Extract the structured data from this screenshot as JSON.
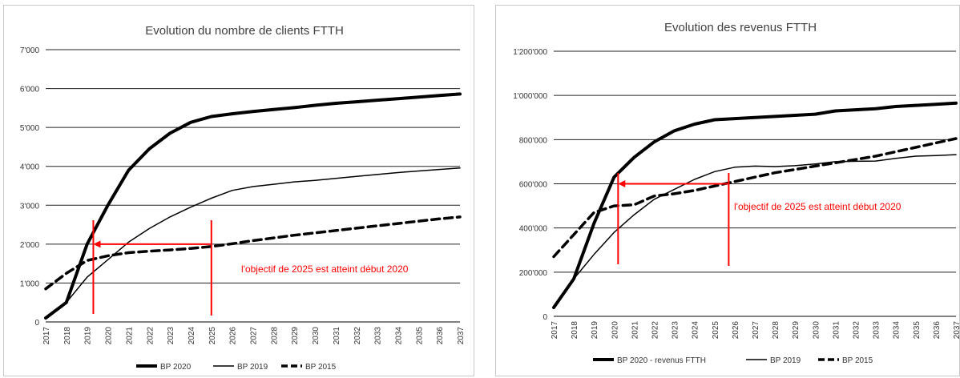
{
  "chart_data": [
    {
      "type": "line",
      "title": "Evolution du nombre de clients FTTH",
      "xlabel": "",
      "ylabel": "",
      "x": [
        "2017",
        "2018",
        "2019",
        "2020",
        "2021",
        "2022",
        "2023",
        "2024",
        "2025",
        "2026",
        "2027",
        "2028",
        "2029",
        "2030",
        "2031",
        "2032",
        "2033",
        "2034",
        "2035",
        "2036",
        "2037"
      ],
      "ylim": [
        0,
        7000
      ],
      "yticks": [
        "0",
        "1'000",
        "2'000",
        "3'000",
        "4'000",
        "5'000",
        "6'000",
        "7'000"
      ],
      "grid": true,
      "legend_position": "bottom",
      "series": [
        {
          "name": "BP 2020",
          "style": "thick",
          "values": [
            100,
            500,
            2000,
            3000,
            3900,
            4450,
            4850,
            5130,
            5280,
            5350,
            5410,
            5460,
            5510,
            5570,
            5620,
            5660,
            5700,
            5740,
            5780,
            5820,
            5860
          ]
        },
        {
          "name": "BP 2019",
          "style": "thin",
          "values": [
            100,
            500,
            1150,
            1600,
            2050,
            2400,
            2700,
            2950,
            3180,
            3380,
            3480,
            3540,
            3600,
            3640,
            3690,
            3740,
            3790,
            3840,
            3880,
            3920,
            3960
          ]
        },
        {
          "name": "BP 2015",
          "style": "dashed",
          "values": [
            850,
            1250,
            1580,
            1700,
            1780,
            1820,
            1850,
            1890,
            1940,
            2010,
            2090,
            2160,
            2230,
            2290,
            2350,
            2410,
            2470,
            2530,
            2590,
            2650,
            2700
          ]
        }
      ],
      "annotation": {
        "text": "l'objectif de 2025 est atteint début 2020",
        "color": "#ff0000",
        "arrow_y_value": 2000,
        "arrow_from_year": 2025,
        "arrow_to_year": 2019.3
      }
    },
    {
      "type": "line",
      "title": "Evolution des revenus FTTH",
      "xlabel": "",
      "ylabel": "",
      "x": [
        "2017",
        "2018",
        "2019",
        "2020",
        "2021",
        "2022",
        "2023",
        "2024",
        "2025",
        "2026",
        "2027",
        "2028",
        "2029",
        "2030",
        "2031",
        "2032",
        "2033",
        "2034",
        "2035",
        "2036",
        "2037"
      ],
      "ylim": [
        0,
        1200000
      ],
      "yticks": [
        "0",
        "200'000",
        "400'000",
        "600'000",
        "800'000",
        "1'000'000",
        "1'200'000"
      ],
      "grid": true,
      "legend_position": "bottom",
      "series": [
        {
          "name": "BP 2020 - revenus FTTH",
          "style": "thick",
          "values": [
            40000,
            170000,
            420000,
            630000,
            720000,
            790000,
            840000,
            870000,
            890000,
            895000,
            900000,
            905000,
            910000,
            915000,
            930000,
            935000,
            940000,
            950000,
            955000,
            960000,
            965000
          ]
        },
        {
          "name": "BP 2019",
          "style": "thin",
          "values": [
            40000,
            170000,
            280000,
            380000,
            460000,
            530000,
            575000,
            620000,
            655000,
            675000,
            680000,
            678000,
            682000,
            690000,
            700000,
            702000,
            703000,
            715000,
            725000,
            728000,
            732000
          ]
        },
        {
          "name": "BP 2015",
          "style": "dashed",
          "values": [
            270000,
            370000,
            470000,
            500000,
            505000,
            545000,
            555000,
            570000,
            590000,
            610000,
            630000,
            650000,
            665000,
            680000,
            695000,
            710000,
            725000,
            745000,
            765000,
            785000,
            805000
          ]
        }
      ],
      "annotation": {
        "text": "l'objectif de 2025 est atteint début 2020",
        "color": "#ff0000",
        "arrow_y_value": 600000,
        "arrow_from_year": 2025.7,
        "arrow_to_year": 2020.2
      }
    }
  ]
}
